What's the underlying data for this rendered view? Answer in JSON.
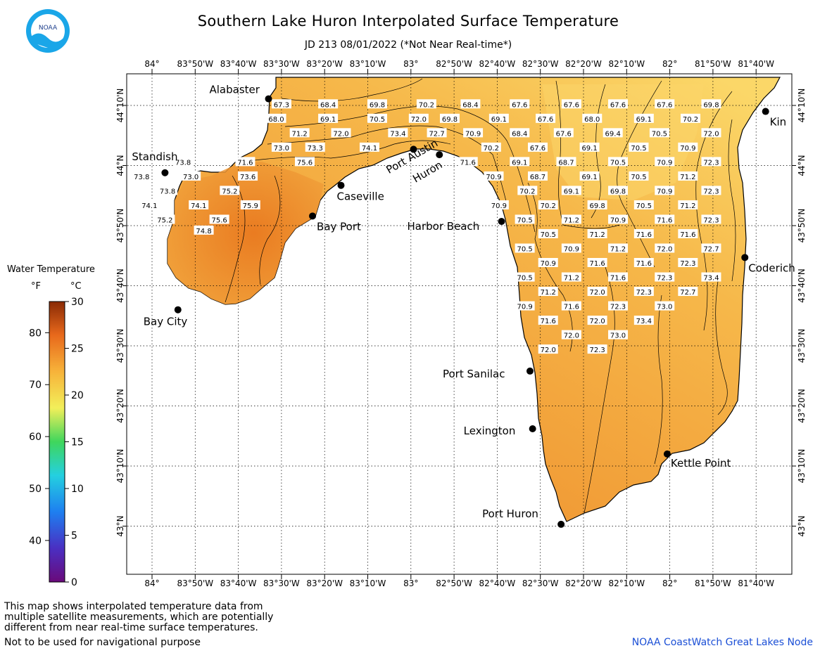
{
  "title": "Southern Lake Huron Interpolated Surface Temperature",
  "subtitle": "JD 213 08/01/2022 (*Not Near Real-time*)",
  "logo_text": "NOAA",
  "legend": {
    "title": "Water Temperature",
    "unit_f": "°F",
    "unit_c": "°C",
    "f_ticks": [
      "80",
      "70",
      "60",
      "50",
      "40"
    ],
    "c_ticks": [
      "30",
      "25",
      "20",
      "15",
      "10",
      "5",
      "0"
    ],
    "c_range": [
      0,
      30
    ]
  },
  "axes": {
    "lon_labels": [
      "84°",
      "83°50'W",
      "83°40'W",
      "83°30'W",
      "83°20'W",
      "83°10'W",
      "83°",
      "82°50'W",
      "82°40'W",
      "82°30'W",
      "82°20'W",
      "82°10'W",
      "82°",
      "81°50'W",
      "81°40'W"
    ],
    "lat_labels": [
      "44°10'N",
      "44°N",
      "43°50'N",
      "43°40'N",
      "43°30'N",
      "43°20'N",
      "43°10'N",
      "43°N"
    ]
  },
  "places": [
    {
      "name": "Alabaster",
      "lon": -83.55,
      "lat": 44.185
    },
    {
      "name": "Standish",
      "lon": -83.95,
      "lat": 43.98
    },
    {
      "name": "Caseville",
      "lon": -83.27,
      "lat": 43.945
    },
    {
      "name": "Port Austin",
      "lon": -82.99,
      "lat": 44.045
    },
    {
      "name": "Huron",
      "lon": -82.89,
      "lat": 44.03
    },
    {
      "name": "Bay Port",
      "lon": -83.38,
      "lat": 43.86
    },
    {
      "name": "Harbor Beach",
      "lon": -82.65,
      "lat": 43.845
    },
    {
      "name": "Bay City",
      "lon": -83.9,
      "lat": 43.6
    },
    {
      "name": "Coderich",
      "lon": -81.71,
      "lat": 43.745
    },
    {
      "name": "Kin",
      "lon": -81.63,
      "lat": 44.15
    },
    {
      "name": "Port Sanilac",
      "lon": -82.54,
      "lat": 43.43
    },
    {
      "name": "Lexington",
      "lon": -82.53,
      "lat": 43.27
    },
    {
      "name": "Kettle Point",
      "lon": -82.01,
      "lat": 43.2
    },
    {
      "name": "Port Huron",
      "lon": -82.42,
      "lat": 43.005
    }
  ],
  "temperatures_f": [
    {
      "v": "67.3",
      "lon": -83.5,
      "lat": 44.17
    },
    {
      "v": "68.4",
      "lon": -83.32,
      "lat": 44.17
    },
    {
      "v": "69.8",
      "lon": -83.13,
      "lat": 44.17
    },
    {
      "v": "70.2",
      "lon": -82.94,
      "lat": 44.17
    },
    {
      "v": "68.4",
      "lon": -82.77,
      "lat": 44.17
    },
    {
      "v": "67.6",
      "lon": -82.58,
      "lat": 44.17
    },
    {
      "v": "67.6",
      "lon": -82.38,
      "lat": 44.17
    },
    {
      "v": "67.6",
      "lon": -82.2,
      "lat": 44.17
    },
    {
      "v": "67.6",
      "lon": -82.02,
      "lat": 44.17
    },
    {
      "v": "69.8",
      "lon": -81.84,
      "lat": 44.17
    },
    {
      "v": "68.0",
      "lon": -83.52,
      "lat": 44.13
    },
    {
      "v": "69.1",
      "lon": -83.32,
      "lat": 44.13
    },
    {
      "v": "70.5",
      "lon": -83.13,
      "lat": 44.13
    },
    {
      "v": "72.0",
      "lon": -82.97,
      "lat": 44.13
    },
    {
      "v": "69.8",
      "lon": -82.85,
      "lat": 44.13
    },
    {
      "v": "69.1",
      "lon": -82.66,
      "lat": 44.13
    },
    {
      "v": "67.6",
      "lon": -82.48,
      "lat": 44.13
    },
    {
      "v": "68.0",
      "lon": -82.3,
      "lat": 44.13
    },
    {
      "v": "69.1",
      "lon": -82.1,
      "lat": 44.13
    },
    {
      "v": "70.2",
      "lon": -81.92,
      "lat": 44.13
    },
    {
      "v": "71.2",
      "lon": -83.43,
      "lat": 44.09
    },
    {
      "v": "72.0",
      "lon": -83.27,
      "lat": 44.09
    },
    {
      "v": "73.4",
      "lon": -83.05,
      "lat": 44.09
    },
    {
      "v": "72.7",
      "lon": -82.9,
      "lat": 44.09
    },
    {
      "v": "70.9",
      "lon": -82.76,
      "lat": 44.09
    },
    {
      "v": "68.4",
      "lon": -82.58,
      "lat": 44.09
    },
    {
      "v": "67.6",
      "lon": -82.41,
      "lat": 44.09
    },
    {
      "v": "69.4",
      "lon": -82.22,
      "lat": 44.09
    },
    {
      "v": "70.5",
      "lon": -82.04,
      "lat": 44.09
    },
    {
      "v": "72.0",
      "lon": -81.84,
      "lat": 44.09
    },
    {
      "v": "73.0",
      "lon": -83.5,
      "lat": 44.05
    },
    {
      "v": "73.3",
      "lon": -83.37,
      "lat": 44.05
    },
    {
      "v": "74.1",
      "lon": -83.16,
      "lat": 44.05
    },
    {
      "v": "70.2",
      "lon": -82.69,
      "lat": 44.05
    },
    {
      "v": "67.6",
      "lon": -82.51,
      "lat": 44.05
    },
    {
      "v": "69.1",
      "lon": -82.31,
      "lat": 44.05
    },
    {
      "v": "70.5",
      "lon": -82.12,
      "lat": 44.05
    },
    {
      "v": "70.9",
      "lon": -81.93,
      "lat": 44.05
    },
    {
      "v": "73.8",
      "lon": -83.88,
      "lat": 44.01
    },
    {
      "v": "71.6",
      "lon": -83.64,
      "lat": 44.01
    },
    {
      "v": "75.6",
      "lon": -83.41,
      "lat": 44.01
    },
    {
      "v": "71.6",
      "lon": -82.78,
      "lat": 44.01
    },
    {
      "v": "69.1",
      "lon": -82.58,
      "lat": 44.01
    },
    {
      "v": "68.7",
      "lon": -82.4,
      "lat": 44.01
    },
    {
      "v": "70.5",
      "lon": -82.2,
      "lat": 44.01
    },
    {
      "v": "70.9",
      "lon": -82.02,
      "lat": 44.01
    },
    {
      "v": "72.3",
      "lon": -81.84,
      "lat": 44.01
    },
    {
      "v": "73.8",
      "lon": -84.04,
      "lat": 43.97
    },
    {
      "v": "73.0",
      "lon": -83.85,
      "lat": 43.97
    },
    {
      "v": "73.6",
      "lon": -83.63,
      "lat": 43.97
    },
    {
      "v": "70.9",
      "lon": -82.68,
      "lat": 43.97
    },
    {
      "v": "68.7",
      "lon": -82.51,
      "lat": 43.97
    },
    {
      "v": "69.1",
      "lon": -82.31,
      "lat": 43.97
    },
    {
      "v": "70.5",
      "lon": -82.12,
      "lat": 43.97
    },
    {
      "v": "71.2",
      "lon": -81.93,
      "lat": 43.97
    },
    {
      "v": "73.8",
      "lon": -83.94,
      "lat": 43.93
    },
    {
      "v": "75.2",
      "lon": -83.7,
      "lat": 43.93
    },
    {
      "v": "70.2",
      "lon": -82.55,
      "lat": 43.93
    },
    {
      "v": "69.1",
      "lon": -82.38,
      "lat": 43.93
    },
    {
      "v": "69.8",
      "lon": -82.2,
      "lat": 43.93
    },
    {
      "v": "70.9",
      "lon": -82.02,
      "lat": 43.93
    },
    {
      "v": "72.3",
      "lon": -81.84,
      "lat": 43.93
    },
    {
      "v": "74.1",
      "lon": -84.01,
      "lat": 43.89
    },
    {
      "v": "74.1",
      "lon": -83.82,
      "lat": 43.89
    },
    {
      "v": "75.9",
      "lon": -83.62,
      "lat": 43.89
    },
    {
      "v": "70.9",
      "lon": -82.66,
      "lat": 43.89
    },
    {
      "v": "70.2",
      "lon": -82.47,
      "lat": 43.89
    },
    {
      "v": "69.8",
      "lon": -82.28,
      "lat": 43.89
    },
    {
      "v": "70.5",
      "lon": -82.1,
      "lat": 43.89
    },
    {
      "v": "71.2",
      "lon": -81.93,
      "lat": 43.89
    },
    {
      "v": "75.2",
      "lon": -83.95,
      "lat": 43.85
    },
    {
      "v": "75.6",
      "lon": -83.74,
      "lat": 43.85
    },
    {
      "v": "70.5",
      "lon": -82.56,
      "lat": 43.85
    },
    {
      "v": "71.2",
      "lon": -82.38,
      "lat": 43.85
    },
    {
      "v": "70.9",
      "lon": -82.2,
      "lat": 43.85
    },
    {
      "v": "71.6",
      "lon": -82.02,
      "lat": 43.85
    },
    {
      "v": "72.3",
      "lon": -81.84,
      "lat": 43.85
    },
    {
      "v": "74.8",
      "lon": -83.8,
      "lat": 43.82
    },
    {
      "v": "70.5",
      "lon": -82.47,
      "lat": 43.81
    },
    {
      "v": "71.2",
      "lon": -82.28,
      "lat": 43.81
    },
    {
      "v": "71.6",
      "lon": -82.1,
      "lat": 43.81
    },
    {
      "v": "71.6",
      "lon": -81.93,
      "lat": 43.81
    },
    {
      "v": "70.5",
      "lon": -82.56,
      "lat": 43.77
    },
    {
      "v": "70.9",
      "lon": -82.38,
      "lat": 43.77
    },
    {
      "v": "71.2",
      "lon": -82.2,
      "lat": 43.77
    },
    {
      "v": "72.0",
      "lon": -82.02,
      "lat": 43.77
    },
    {
      "v": "72.7",
      "lon": -81.84,
      "lat": 43.77
    },
    {
      "v": "70.9",
      "lon": -82.47,
      "lat": 43.73
    },
    {
      "v": "71.6",
      "lon": -82.28,
      "lat": 43.73
    },
    {
      "v": "71.6",
      "lon": -82.1,
      "lat": 43.73
    },
    {
      "v": "72.3",
      "lon": -81.93,
      "lat": 43.73
    },
    {
      "v": "70.5",
      "lon": -82.56,
      "lat": 43.69
    },
    {
      "v": "71.2",
      "lon": -82.38,
      "lat": 43.69
    },
    {
      "v": "71.6",
      "lon": -82.2,
      "lat": 43.69
    },
    {
      "v": "72.3",
      "lon": -82.02,
      "lat": 43.69
    },
    {
      "v": "73.4",
      "lon": -81.84,
      "lat": 43.69
    },
    {
      "v": "71.2",
      "lon": -82.47,
      "lat": 43.65
    },
    {
      "v": "72.0",
      "lon": -82.28,
      "lat": 43.65
    },
    {
      "v": "72.3",
      "lon": -82.1,
      "lat": 43.65
    },
    {
      "v": "72.7",
      "lon": -81.93,
      "lat": 43.65
    },
    {
      "v": "70.9",
      "lon": -82.56,
      "lat": 43.61
    },
    {
      "v": "71.6",
      "lon": -82.38,
      "lat": 43.61
    },
    {
      "v": "72.3",
      "lon": -82.2,
      "lat": 43.61
    },
    {
      "v": "73.0",
      "lon": -82.02,
      "lat": 43.61
    },
    {
      "v": "71.6",
      "lon": -82.47,
      "lat": 43.57
    },
    {
      "v": "72.0",
      "lon": -82.28,
      "lat": 43.57
    },
    {
      "v": "73.4",
      "lon": -82.1,
      "lat": 43.57
    },
    {
      "v": "72.0",
      "lon": -82.38,
      "lat": 43.53
    },
    {
      "v": "73.0",
      "lon": -82.2,
      "lat": 43.53
    },
    {
      "v": "72.0",
      "lon": -82.47,
      "lat": 43.49
    },
    {
      "v": "72.3",
      "lon": -82.28,
      "lat": 43.49
    }
  ],
  "note": [
    "This map shows interpolated temperature data from",
    "multiple satellite measurements, which are potentially",
    "different from near real-time surface temperatures."
  ],
  "note2": "Not to be used for navigational purpose",
  "credit": "NOAA CoastWatch Great Lakes Node"
}
